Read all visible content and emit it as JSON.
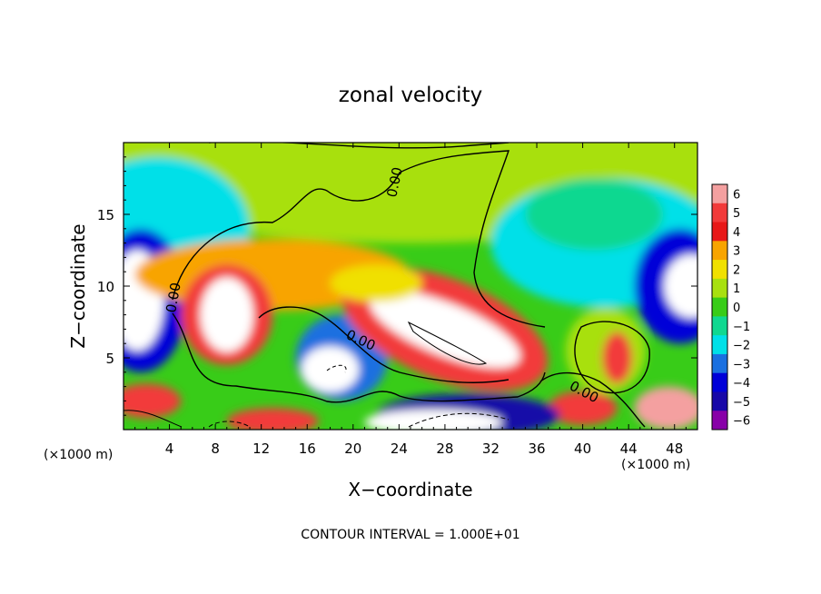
{
  "chart_data": {
    "type": "heatmap",
    "title": "zonal velocity",
    "xlabel": "X−coordinate",
    "ylabel": "Z−coordinate",
    "x_unit_label": "(×1000 m)",
    "y_unit_label": "(×1000 m)",
    "xlim": [
      0,
      50
    ],
    "ylim": [
      0,
      20
    ],
    "x_ticks": [
      4,
      8,
      12,
      16,
      20,
      24,
      28,
      32,
      36,
      40,
      44,
      48
    ],
    "x_ticklabels": [
      "4",
      "8",
      "12",
      "16",
      "20",
      "24",
      "28",
      "32",
      "36",
      "40",
      "44",
      "48"
    ],
    "y_ticks": [
      5,
      10,
      15
    ],
    "y_ticklabels": [
      "5",
      "10",
      "15"
    ],
    "colorbar": {
      "levels": [
        6,
        5,
        4,
        3,
        2,
        1,
        0,
        -1,
        -2,
        -3,
        -4,
        -5,
        -6
      ],
      "labels": [
        "6",
        "5",
        "4",
        "3",
        "2",
        "1",
        "0",
        "−1",
        "−2",
        "−3",
        "−4",
        "−5",
        "−6"
      ],
      "colors": [
        "#f4a0a0",
        "#f23a3a",
        "#e81818",
        "#f8a400",
        "#f0e000",
        "#a8e010",
        "#38cc18",
        "#10d890",
        "#00e0e8",
        "#1a70e0",
        "#0000d8",
        "#1808a8",
        "#8800a8"
      ]
    },
    "contour_labels": [
      "0.00",
      "0.00",
      "0.00",
      "0.00"
    ],
    "footer": "CONTOUR INTERVAL = 1.000E+01",
    "regions": [
      {
        "kind": "ellipse",
        "cx": 25,
        "cy": 19,
        "rx": 30,
        "ry": 6,
        "value": 0.5
      },
      {
        "kind": "ellipse",
        "cx": 3,
        "cy": 14,
        "rx": 8,
        "ry": 5,
        "value": -2
      },
      {
        "kind": "ellipse",
        "cx": 42,
        "cy": 13,
        "rx": 10,
        "ry": 4.5,
        "value": -2.5
      },
      {
        "kind": "ellipse",
        "cx": 41,
        "cy": 15,
        "rx": 6,
        "ry": 2.5,
        "value": -1.5
      },
      {
        "kind": "ellipse",
        "cx": 1.5,
        "cy": 9,
        "rx": 4,
        "ry": 5,
        "value": -4
      },
      {
        "kind": "ellipse",
        "cx": 1.2,
        "cy": 9,
        "rx": 2.3,
        "ry": 3.5,
        "value": -6.5
      },
      {
        "kind": "ellipse",
        "cx": 48.5,
        "cy": 10,
        "rx": 4,
        "ry": 4,
        "value": -4.5
      },
      {
        "kind": "ellipse",
        "cx": 49.5,
        "cy": 10,
        "rx": 2.4,
        "ry": 2.2,
        "value": -6.5
      },
      {
        "kind": "ellipse",
        "cx": 13,
        "cy": 10.8,
        "rx": 12,
        "ry": 2.5,
        "value": 3
      },
      {
        "kind": "ellipse",
        "cx": 9,
        "cy": 8,
        "rx": 4,
        "ry": 3.5,
        "value": 5
      },
      {
        "kind": "ellipse",
        "cx": 9,
        "cy": 8,
        "rx": 2.3,
        "ry": 2.6,
        "value": 7
      },
      {
        "kind": "ellipse",
        "cx": 19,
        "cy": 5,
        "rx": 4,
        "ry": 3,
        "value": -3.5
      },
      {
        "kind": "ellipse",
        "cx": 18,
        "cy": 4.2,
        "rx": 2.5,
        "ry": 1.6,
        "value": -6.5
      },
      {
        "kind": "ellipse",
        "cx": 28,
        "cy": 7,
        "rx": 9.5,
        "ry": 3.5,
        "value": 4.5,
        "rot": 22
      },
      {
        "kind": "ellipse",
        "cx": 28,
        "cy": 7,
        "rx": 7,
        "ry": 1.8,
        "value": 7,
        "rot": 22
      },
      {
        "kind": "ellipse",
        "cx": 22,
        "cy": 10.2,
        "rx": 4,
        "ry": 1.3,
        "value": 2
      },
      {
        "kind": "ellipse",
        "cx": 42,
        "cy": 5.5,
        "rx": 3.5,
        "ry": 3,
        "value": 1
      },
      {
        "kind": "ellipse",
        "cx": 43,
        "cy": 5,
        "rx": 1.3,
        "ry": 1.8,
        "value": 4.5
      },
      {
        "kind": "ellipse",
        "cx": 40,
        "cy": 1.5,
        "rx": 3,
        "ry": 1.2,
        "value": 4.5
      },
      {
        "kind": "ellipse",
        "cx": 47.5,
        "cy": 1.5,
        "rx": 3,
        "ry": 1.5,
        "value": 5.5
      },
      {
        "kind": "ellipse",
        "cx": 30,
        "cy": 1,
        "rx": 8,
        "ry": 1.5,
        "value": -5.5
      },
      {
        "kind": "ellipse",
        "cx": 27,
        "cy": 0.5,
        "rx": 6,
        "ry": 0.9,
        "value": -7
      },
      {
        "kind": "ellipse",
        "cx": 13,
        "cy": 0.6,
        "rx": 4,
        "ry": 0.9,
        "value": 5
      },
      {
        "kind": "ellipse",
        "cx": 2,
        "cy": 2,
        "rx": 3,
        "ry": 1.2,
        "value": 5
      }
    ]
  }
}
